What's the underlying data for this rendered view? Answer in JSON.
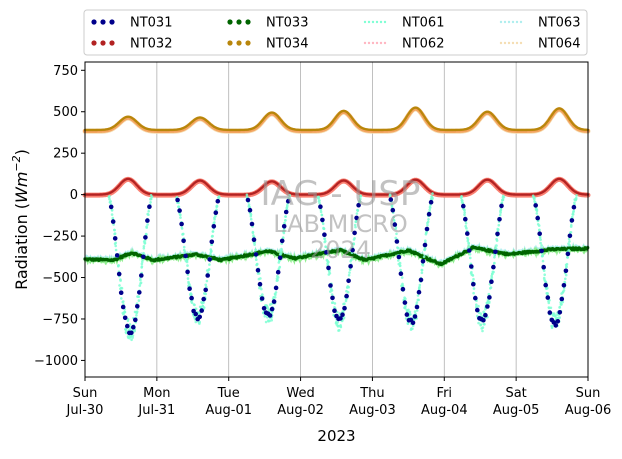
{
  "chart_data": {
    "type": "scatter",
    "title": "",
    "xlabel": "2023",
    "ylabel_prefix": "Radiation (",
    "ylabel_unit_base": "Wm",
    "ylabel_unit_exp": "−2",
    "ylabel_suffix": ")",
    "xlim": [
      0,
      7
    ],
    "ylim": [
      -1100,
      800
    ],
    "yticks": [
      750,
      500,
      250,
      0,
      -250,
      -500,
      -750,
      -1000
    ],
    "ytick_labels": [
      "750",
      "500",
      "250",
      "0",
      "−250",
      "−500",
      "−750",
      "−1000"
    ],
    "xticks": [
      {
        "day": 0,
        "weekday": "Sun",
        "date": "Jul-30"
      },
      {
        "day": 1,
        "weekday": "Mon",
        "date": "Jul-31"
      },
      {
        "day": 2,
        "weekday": "Tue",
        "date": "Aug-01"
      },
      {
        "day": 3,
        "weekday": "Wed",
        "date": "Aug-02"
      },
      {
        "day": 4,
        "weekday": "Thu",
        "date": "Aug-03"
      },
      {
        "day": 5,
        "weekday": "Fri",
        "date": "Aug-04"
      },
      {
        "day": 6,
        "weekday": "Sat",
        "date": "Aug-05"
      },
      {
        "day": 7,
        "weekday": "Sun",
        "date": "Aug-06"
      }
    ],
    "grid": "vertical",
    "legend_position": "top, above plot, 4 columns",
    "watermark": [
      "IAG - USP",
      "LAB MICRO",
      "2024"
    ],
    "series": [
      {
        "name": "NT031",
        "color": "#00008b",
        "style": "markers",
        "daily_min": [
          -830,
          -740,
          -730,
          -760,
          -770,
          -760,
          -780
        ],
        "noon_offset": [
          0.13,
          0.07,
          0.05,
          0.04,
          0.04,
          0.03,
          0.04
        ],
        "baseline": 0,
        "half_width_days": 0.31
      },
      {
        "name": "NT032",
        "color": "#b22222",
        "style": "markers",
        "daily_max": [
          95,
          85,
          80,
          85,
          90,
          90,
          95
        ],
        "baseline": 0
      },
      {
        "name": "NT033",
        "color": "#006400",
        "style": "markers",
        "daily_profile": [
          {
            "day": 0.0,
            "value": -390
          },
          {
            "day": 0.4,
            "value": -395
          },
          {
            "day": 0.65,
            "value": -350
          },
          {
            "day": 0.95,
            "value": -395
          },
          {
            "day": 1.55,
            "value": -360
          },
          {
            "day": 1.9,
            "value": -395
          },
          {
            "day": 2.55,
            "value": -340
          },
          {
            "day": 2.9,
            "value": -385
          },
          {
            "day": 3.55,
            "value": -335
          },
          {
            "day": 3.9,
            "value": -395
          },
          {
            "day": 4.5,
            "value": -335
          },
          {
            "day": 4.95,
            "value": -420
          },
          {
            "day": 5.4,
            "value": -320
          },
          {
            "day": 5.9,
            "value": -360
          },
          {
            "day": 6.5,
            "value": -330
          },
          {
            "day": 7.0,
            "value": -325
          }
        ]
      },
      {
        "name": "NT034",
        "color": "#b8860b",
        "style": "markers",
        "daily_max": [
          470,
          465,
          495,
          505,
          525,
          500,
          520
        ],
        "baseline": 390
      },
      {
        "name": "NT061",
        "color": "#7fffd4",
        "style": "dotted",
        "note": "follows NT031 with added scatter"
      },
      {
        "name": "NT062",
        "color": "#ffb6c1",
        "style": "dotted",
        "note": "follows NT032"
      },
      {
        "name": "NT063",
        "color": "#afeeee",
        "style": "dotted",
        "note": "follows NT033"
      },
      {
        "name": "NT064",
        "color": "#f5deb3",
        "style": "dotted",
        "note": "follows NT034"
      }
    ]
  }
}
